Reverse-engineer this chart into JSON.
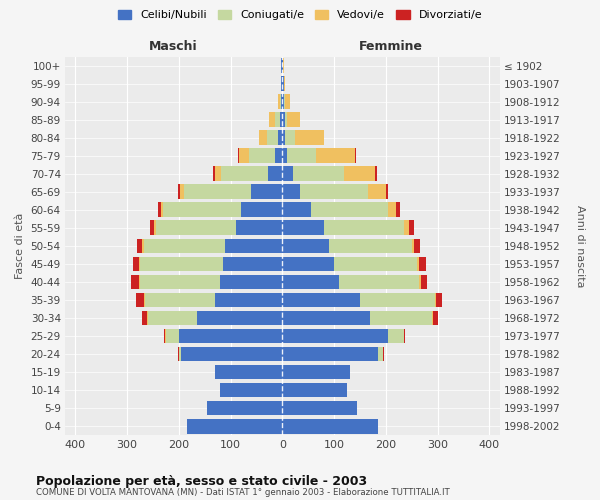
{
  "age_groups": [
    "0-4",
    "5-9",
    "10-14",
    "15-19",
    "20-24",
    "25-29",
    "30-34",
    "35-39",
    "40-44",
    "45-49",
    "50-54",
    "55-59",
    "60-64",
    "65-69",
    "70-74",
    "75-79",
    "80-84",
    "85-89",
    "90-94",
    "95-99",
    "100+"
  ],
  "birth_years": [
    "1998-2002",
    "1993-1997",
    "1988-1992",
    "1983-1987",
    "1978-1982",
    "1973-1977",
    "1968-1972",
    "1963-1967",
    "1958-1962",
    "1953-1957",
    "1948-1952",
    "1943-1947",
    "1938-1942",
    "1933-1937",
    "1928-1932",
    "1923-1927",
    "1918-1922",
    "1913-1917",
    "1908-1912",
    "1903-1907",
    "≤ 1902"
  ],
  "males": {
    "celibi": [
      185,
      145,
      120,
      130,
      195,
      200,
      165,
      130,
      120,
      115,
      110,
      90,
      80,
      60,
      28,
      15,
      8,
      5,
      3,
      2,
      2
    ],
    "coniugati": [
      0,
      0,
      0,
      0,
      5,
      25,
      95,
      135,
      155,
      160,
      158,
      155,
      150,
      130,
      90,
      50,
      22,
      10,
      2,
      0,
      0
    ],
    "vedovi": [
      0,
      0,
      0,
      0,
      0,
      1,
      2,
      2,
      2,
      2,
      3,
      3,
      5,
      8,
      12,
      18,
      15,
      10,
      3,
      1,
      0
    ],
    "divorziati": [
      0,
      0,
      0,
      0,
      1,
      2,
      10,
      15,
      15,
      12,
      10,
      8,
      5,
      4,
      3,
      2,
      0,
      0,
      0,
      0,
      0
    ]
  },
  "females": {
    "nubili": [
      185,
      145,
      125,
      130,
      185,
      205,
      170,
      150,
      110,
      100,
      90,
      80,
      55,
      35,
      20,
      10,
      5,
      5,
      3,
      3,
      2
    ],
    "coniugate": [
      0,
      0,
      0,
      0,
      10,
      30,
      120,
      145,
      155,
      160,
      160,
      155,
      150,
      130,
      100,
      55,
      20,
      5,
      2,
      0,
      0
    ],
    "vedove": [
      0,
      0,
      0,
      0,
      0,
      1,
      1,
      2,
      3,
      5,
      5,
      10,
      15,
      35,
      60,
      75,
      55,
      25,
      10,
      2,
      1
    ],
    "divorziate": [
      0,
      0,
      0,
      0,
      1,
      2,
      10,
      12,
      12,
      12,
      12,
      10,
      8,
      5,
      3,
      2,
      0,
      0,
      0,
      0,
      0
    ]
  },
  "colors": {
    "celibi": "#4472c4",
    "coniugati": "#c5d8a0",
    "vedovi": "#f0c060",
    "divorziati": "#cc2222"
  },
  "xlim": 420,
  "title": "Popolazione per età, sesso e stato civile - 2003",
  "subtitle": "COMUNE DI VOLTA MANTOVANA (MN) - Dati ISTAT 1° gennaio 2003 - Elaborazione TUTTITALIA.IT",
  "ylabel_left": "Fasce di età",
  "ylabel_right": "Anni di nascita",
  "xlabel_left": "Maschi",
  "xlabel_right": "Femmine",
  "legend_labels": [
    "Celibi/Nubili",
    "Coniugati/e",
    "Vedovi/e",
    "Divorziati/e"
  ],
  "bg_color": "#f5f5f5",
  "plot_bg": "#ebebeb"
}
